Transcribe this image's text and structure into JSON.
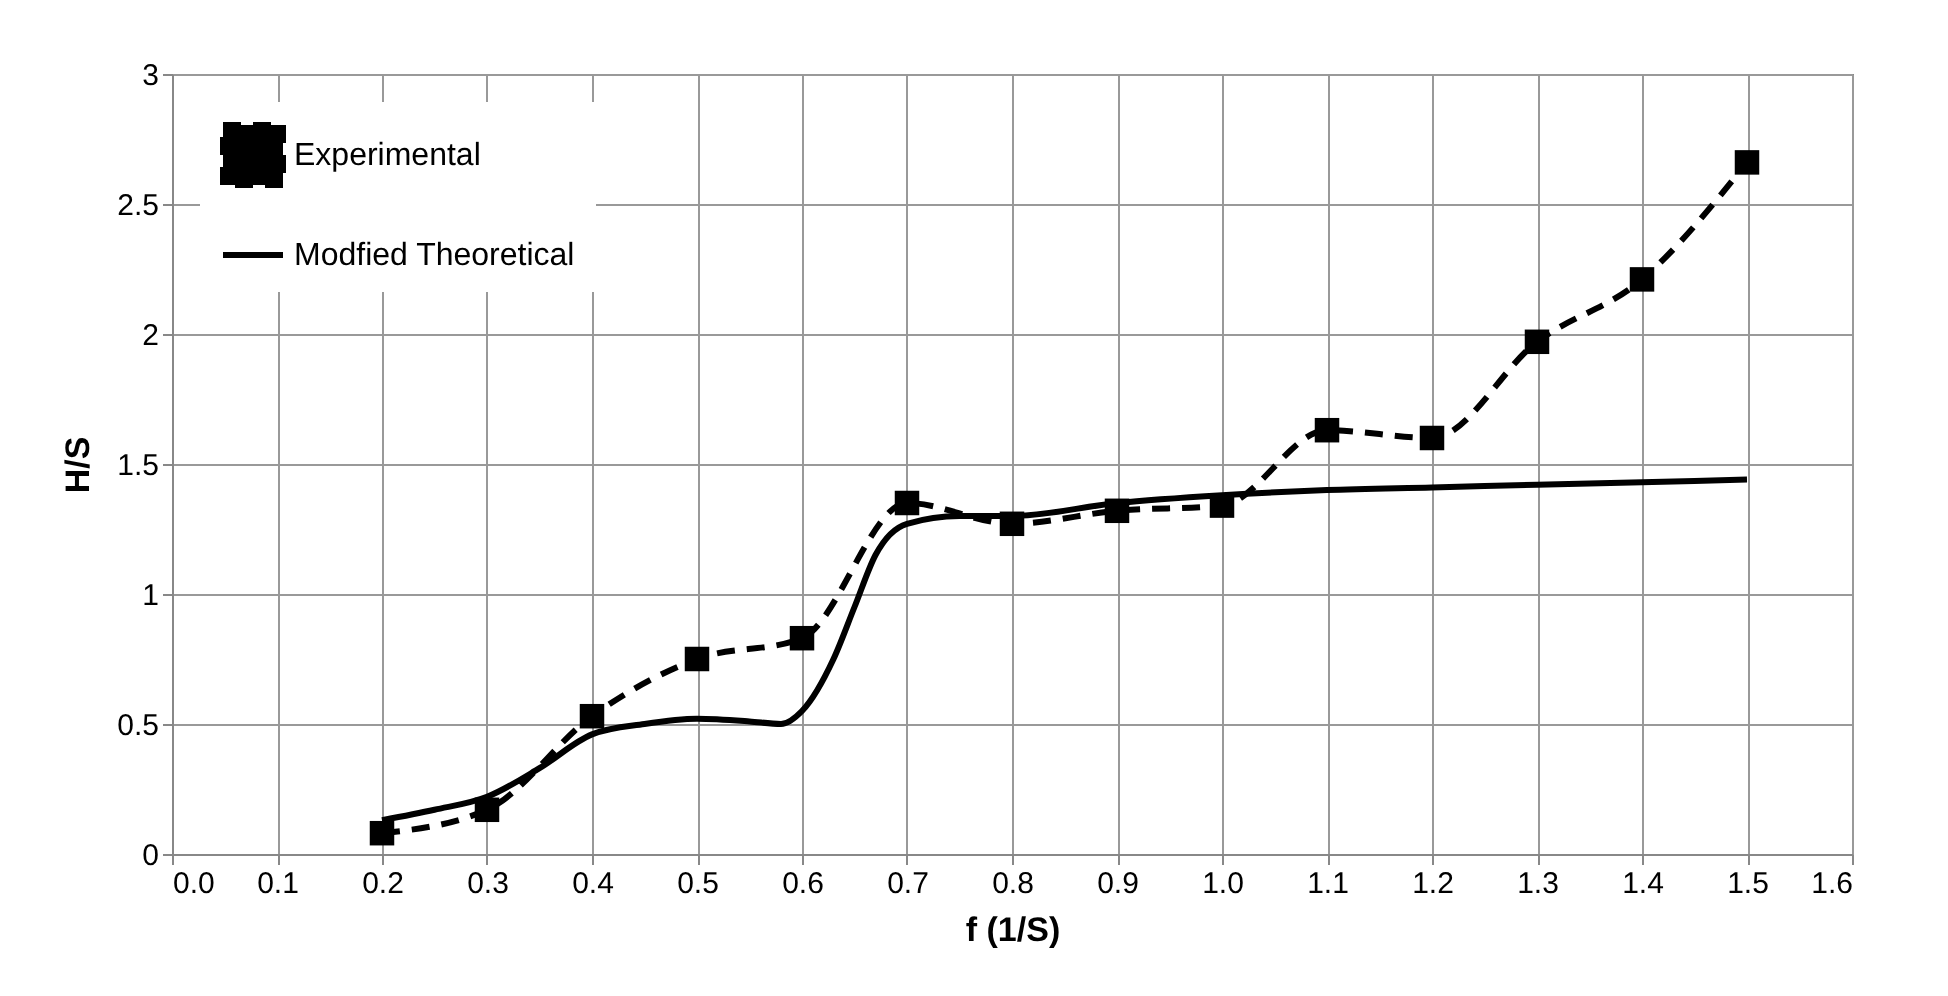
{
  "chart_data": {
    "type": "line",
    "xlabel": "f (1/S)",
    "ylabel": "H/S",
    "xlim": [
      0,
      1.6
    ],
    "xticks": [
      {
        "value": 0,
        "label": "0.0"
      },
      0.1,
      0.2,
      0.3,
      0.4,
      0.5,
      0.6,
      0.7,
      0.8,
      0.9,
      {
        "value": 1,
        "label": "1.0"
      },
      1.1,
      1.2,
      1.3,
      1.4,
      1.5,
      1.6
    ],
    "ylim": [
      0,
      3
    ],
    "yticks": [
      0,
      0.5,
      1,
      1.5,
      2,
      2.5,
      3
    ],
    "grid": true,
    "legend": "top left",
    "series": [
      {
        "name": "Experimental",
        "color": "#000000",
        "line_style": "dashed",
        "marker": "square",
        "x": [
          0.2,
          0.3,
          0.4,
          0.5,
          0.6,
          0.7,
          0.8,
          0.9,
          1.0,
          1.1,
          1.2,
          1.3,
          1.4,
          1.5
        ],
        "values": [
          0.08,
          0.17,
          0.53,
          0.75,
          0.83,
          1.35,
          1.27,
          1.32,
          1.34,
          1.63,
          1.6,
          1.97,
          2.21,
          2.66
        ]
      },
      {
        "name": "Modfied Theoretical",
        "color": "#000000",
        "line_style": "solid",
        "marker": "none",
        "x": [
          0.2,
          0.25,
          0.3,
          0.35,
          0.4,
          0.45,
          0.5,
          0.55,
          0.58,
          0.6,
          0.63,
          0.65,
          0.67,
          0.7,
          0.75,
          0.8,
          0.9,
          1.0,
          1.1,
          1.2,
          1.3,
          1.4,
          1.5
        ],
        "values": [
          0.13,
          0.17,
          0.22,
          0.33,
          0.46,
          0.5,
          0.52,
          0.51,
          0.5,
          0.55,
          0.75,
          0.95,
          1.15,
          1.27,
          1.3,
          1.3,
          1.35,
          1.38,
          1.4,
          1.41,
          1.42,
          1.43,
          1.44
        ]
      }
    ]
  }
}
